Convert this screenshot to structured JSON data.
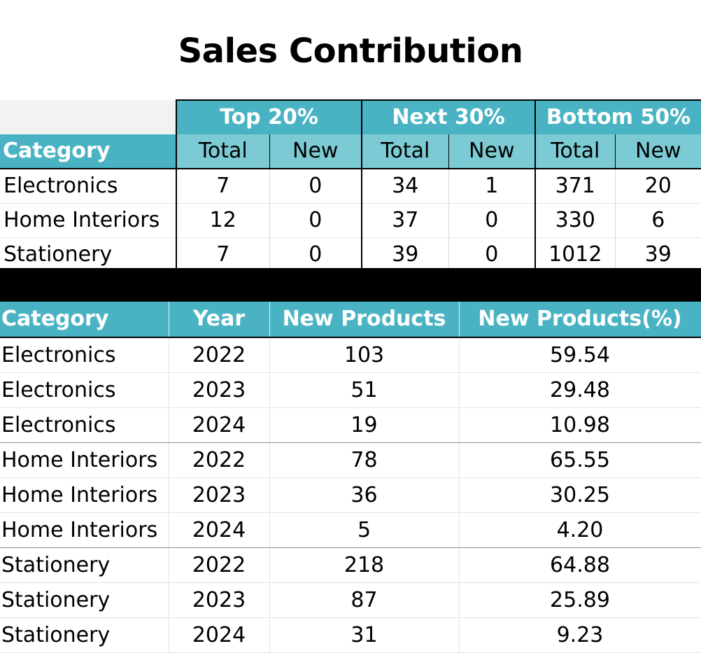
{
  "title": "Sales Contribution",
  "summary_table": {
    "groups": [
      "Top 20%",
      "Next 30%",
      "Bottom 50%"
    ],
    "category_header": "Category",
    "sub_headers": [
      "Total",
      "New",
      "Total",
      "New",
      "Total",
      "New"
    ],
    "rows": [
      {
        "category": "Electronics",
        "values": [
          "7",
          "0",
          "34",
          "1",
          "371",
          "20"
        ]
      },
      {
        "category": "Home Interiors",
        "values": [
          "12",
          "0",
          "37",
          "0",
          "330",
          "6"
        ]
      },
      {
        "category": "Stationery",
        "values": [
          "7",
          "0",
          "39",
          "0",
          "1012",
          "39"
        ]
      }
    ]
  },
  "detail_table": {
    "headers": [
      "Category",
      "Year",
      "New Products",
      "New Products(%)"
    ],
    "rows": [
      [
        "Electronics",
        "2022",
        "103",
        "59.54"
      ],
      [
        "Electronics",
        "2023",
        "51",
        "29.48"
      ],
      [
        "Electronics",
        "2024",
        "19",
        "10.98"
      ],
      [
        "Home Interiors",
        "2022",
        "78",
        "65.55"
      ],
      [
        "Home Interiors",
        "2023",
        "36",
        "30.25"
      ],
      [
        "Home Interiors",
        "2024",
        "5",
        "4.20"
      ],
      [
        "Stationery",
        "2022",
        "218",
        "64.88"
      ],
      [
        "Stationery",
        "2023",
        "87",
        "25.89"
      ],
      [
        "Stationery",
        "2024",
        "31",
        "9.23"
      ]
    ]
  },
  "colors": {
    "header_teal": "#4ab3c3",
    "subheader_teal": "#7ccbd4",
    "separator_bar": "#000000"
  }
}
